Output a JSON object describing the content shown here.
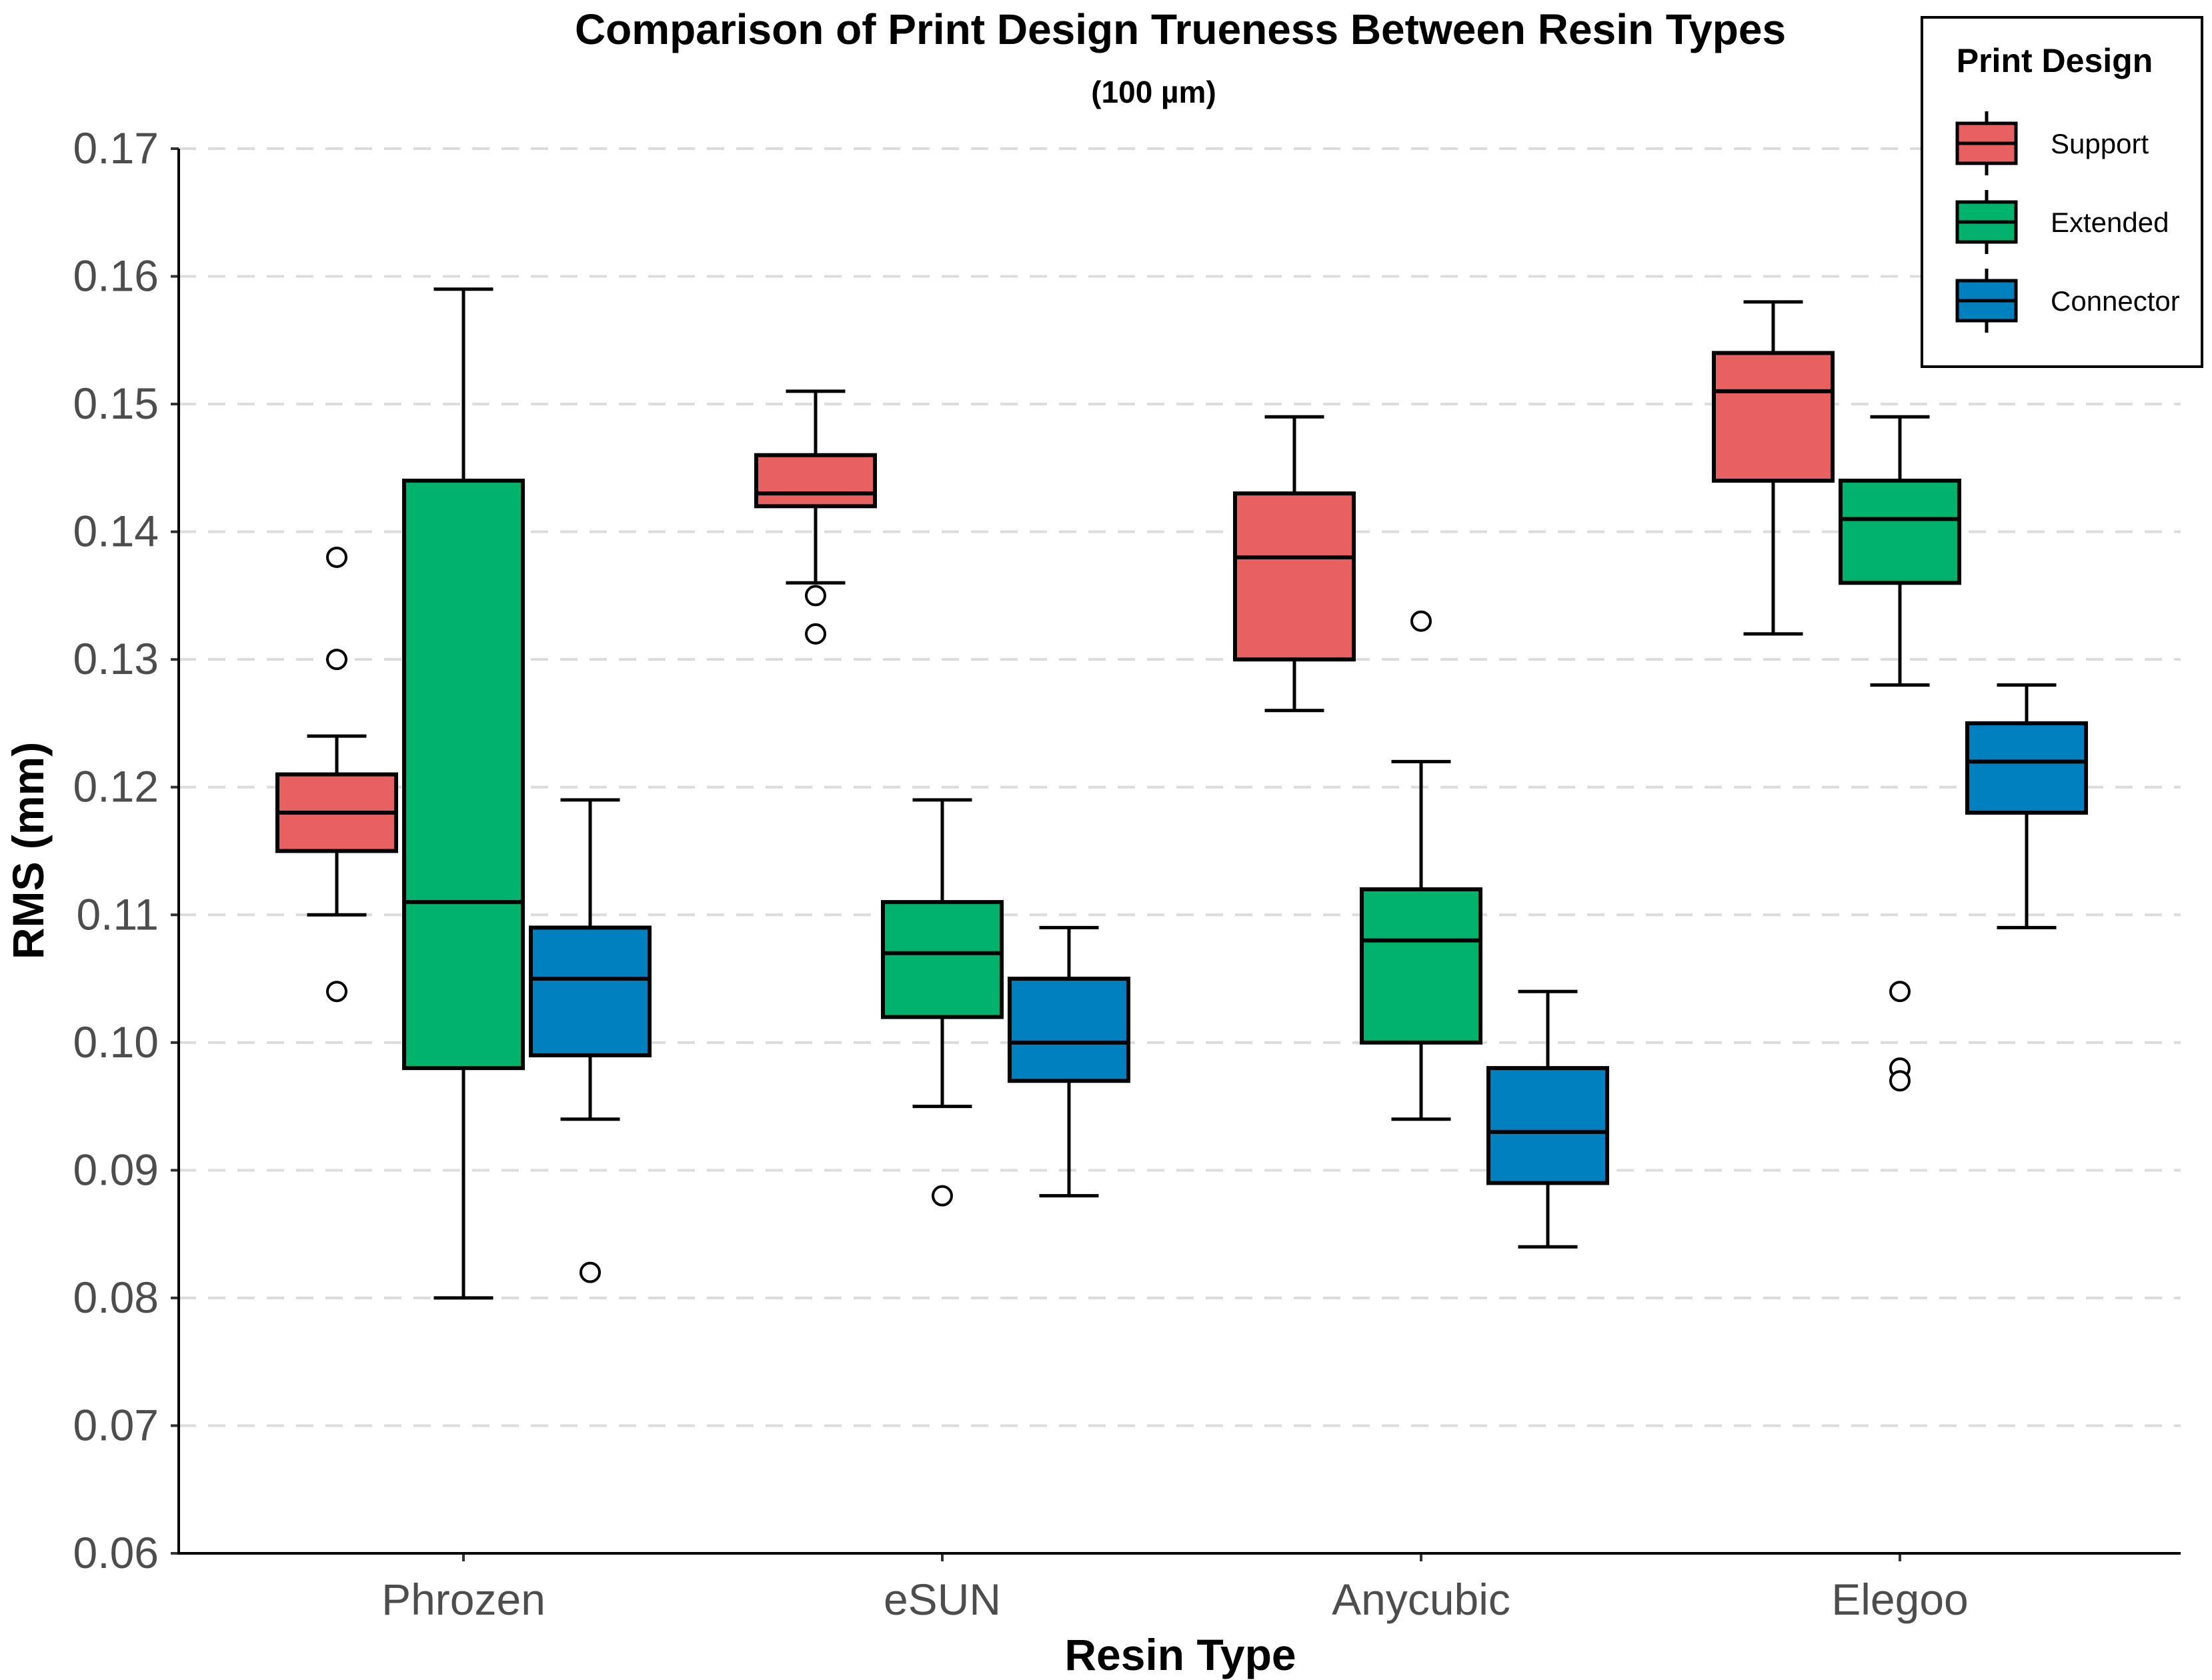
{
  "chart_data": {
    "type": "box",
    "title": "Comparison of Print Design Trueness Between Resin Types",
    "subtitle": "(100 µm)",
    "xlabel": "Resin Type",
    "ylabel": "RMS (mm)",
    "ylim": [
      0.06,
      0.17
    ],
    "yticks": [
      0.06,
      0.07,
      0.08,
      0.09,
      0.1,
      0.11,
      0.12,
      0.13,
      0.14,
      0.15,
      0.16,
      0.17
    ],
    "ytick_labels": [
      "0.06",
      "0.07",
      "0.08",
      "0.09",
      "0.10",
      "0.11",
      "0.12",
      "0.13",
      "0.14",
      "0.15",
      "0.16",
      "0.17"
    ],
    "grid": "horizontal-dashed",
    "categories": [
      "Phrozen",
      "eSUN",
      "Anycubic",
      "Elegoo"
    ],
    "legend": {
      "title": "Print Design",
      "position": "top-right"
    },
    "series": [
      {
        "name": "Support",
        "color": "#e8605f",
        "boxes": [
          {
            "whisker_low": 0.11,
            "q1": 0.115,
            "median": 0.118,
            "q3": 0.121,
            "whisker_high": 0.124,
            "outliers": [
              0.138,
              0.13,
              0.104
            ]
          },
          {
            "whisker_low": 0.136,
            "q1": 0.142,
            "median": 0.143,
            "q3": 0.146,
            "whisker_high": 0.151,
            "outliers": [
              0.135,
              0.132
            ]
          },
          {
            "whisker_low": 0.126,
            "q1": 0.13,
            "median": 0.138,
            "q3": 0.143,
            "whisker_high": 0.149,
            "outliers": []
          },
          {
            "whisker_low": 0.132,
            "q1": 0.144,
            "median": 0.151,
            "q3": 0.154,
            "whisker_high": 0.158,
            "outliers": []
          }
        ]
      },
      {
        "name": "Extended",
        "color": "#00b26b",
        "boxes": [
          {
            "whisker_low": 0.08,
            "q1": 0.098,
            "median": 0.111,
            "q3": 0.144,
            "whisker_high": 0.159,
            "outliers": []
          },
          {
            "whisker_low": 0.095,
            "q1": 0.102,
            "median": 0.107,
            "q3": 0.111,
            "whisker_high": 0.119,
            "outliers": [
              0.088
            ]
          },
          {
            "whisker_low": 0.094,
            "q1": 0.1,
            "median": 0.108,
            "q3": 0.112,
            "whisker_high": 0.122,
            "outliers": [
              0.133
            ]
          },
          {
            "whisker_low": 0.128,
            "q1": 0.136,
            "median": 0.141,
            "q3": 0.144,
            "whisker_high": 0.149,
            "outliers": [
              0.104,
              0.098,
              0.097
            ]
          }
        ]
      },
      {
        "name": "Connector",
        "color": "#0080bf",
        "boxes": [
          {
            "whisker_low": 0.094,
            "q1": 0.099,
            "median": 0.105,
            "q3": 0.109,
            "whisker_high": 0.119,
            "outliers": [
              0.082
            ]
          },
          {
            "whisker_low": 0.088,
            "q1": 0.097,
            "median": 0.1,
            "q3": 0.105,
            "whisker_high": 0.109,
            "outliers": []
          },
          {
            "whisker_low": 0.084,
            "q1": 0.089,
            "median": 0.093,
            "q3": 0.098,
            "whisker_high": 0.104,
            "outliers": []
          },
          {
            "whisker_low": 0.109,
            "q1": 0.118,
            "median": 0.122,
            "q3": 0.125,
            "whisker_high": 0.128,
            "outliers": []
          }
        ]
      }
    ]
  }
}
